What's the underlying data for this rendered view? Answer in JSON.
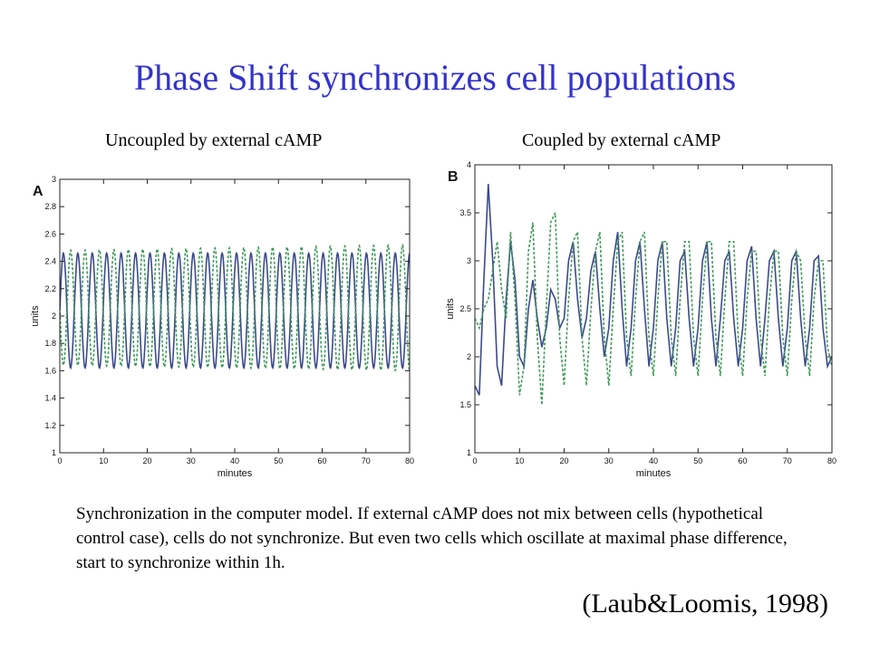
{
  "slide": {
    "title": "Phase Shift synchronizes cell populations",
    "caption": "Synchronization in the computer model. If external cAMP does not mix between cells (hypothetical control case), cells do not synchronize. But even two cells which oscillate at maximal phase difference, start to synchronize within 1h.",
    "citation": "(Laub&Loomis, 1998)"
  },
  "colors": {
    "title": "#3333cc",
    "series1": "#3b4a8c",
    "series2": "#3f9a5a"
  },
  "chart_data": [
    {
      "type": "line",
      "subtitle": "Uncoupled by external cAMP",
      "panel_label": "A",
      "xlabel": "minutes",
      "ylabel": "units",
      "xlim": [
        0,
        80
      ],
      "ylim": [
        1,
        3
      ],
      "xticks": [
        0,
        10,
        20,
        30,
        40,
        50,
        60,
        70,
        80
      ],
      "yticks": [
        1,
        1.2,
        1.4,
        1.6,
        1.8,
        2,
        2.2,
        2.4,
        2.6,
        2.8,
        3
      ],
      "grid": false,
      "series": [
        {
          "style": "solid",
          "period_min": 3.3,
          "phase": 0,
          "mean": 2.04,
          "amplitude": 0.42,
          "amplitude_end": 0.42
        },
        {
          "style": "dashed",
          "period_min": 3.3,
          "phase": 3.14159,
          "mean": 2.06,
          "amplitude": 0.42,
          "amplitude_end": 0.46
        }
      ]
    },
    {
      "type": "line",
      "subtitle": "Coupled by external cAMP",
      "panel_label": "B",
      "xlabel": "minutes",
      "ylabel": "units",
      "xlim": [
        0,
        80
      ],
      "ylim": [
        1,
        4
      ],
      "xticks": [
        0,
        10,
        20,
        30,
        40,
        50,
        60,
        70,
        80
      ],
      "yticks": [
        1,
        1.5,
        2,
        2.5,
        3,
        3.5,
        4
      ],
      "grid": false,
      "series": [
        {
          "style": "solid",
          "points": [
            [
              0,
              1.7
            ],
            [
              1,
              1.6
            ],
            [
              2,
              2.8
            ],
            [
              3,
              3.8
            ],
            [
              4,
              3.0
            ],
            [
              5,
              1.9
            ],
            [
              6,
              1.7
            ],
            [
              7,
              2.6
            ],
            [
              8,
              3.2
            ],
            [
              9,
              2.8
            ],
            [
              10,
              2.0
            ],
            [
              11,
              1.9
            ],
            [
              12,
              2.5
            ],
            [
              13,
              2.8
            ],
            [
              14,
              2.4
            ],
            [
              15,
              2.1
            ],
            [
              16,
              2.3
            ],
            [
              17,
              2.7
            ],
            [
              18,
              2.6
            ],
            [
              19,
              2.3
            ],
            [
              20,
              2.4
            ],
            [
              21,
              3.0
            ],
            [
              22,
              3.2
            ],
            [
              23,
              2.6
            ],
            [
              24,
              2.2
            ],
            [
              25,
              2.4
            ],
            [
              26,
              2.9
            ],
            [
              27,
              3.1
            ],
            [
              28,
              2.5
            ],
            [
              29,
              2.0
            ],
            [
              30,
              2.3
            ],
            [
              31,
              3.0
            ],
            [
              32,
              3.3
            ],
            [
              33,
              2.5
            ],
            [
              34,
              1.9
            ],
            [
              35,
              2.3
            ],
            [
              36,
              3.0
            ],
            [
              37,
              3.2
            ],
            [
              38,
              2.5
            ],
            [
              39,
              1.9
            ],
            [
              40,
              2.3
            ],
            [
              41,
              3.0
            ],
            [
              42,
              3.2
            ],
            [
              43,
              2.4
            ],
            [
              44,
              1.9
            ],
            [
              45,
              2.3
            ],
            [
              46,
              3.0
            ],
            [
              47,
              3.1
            ],
            [
              48,
              2.4
            ],
            [
              49,
              1.9
            ],
            [
              50,
              2.3
            ],
            [
              51,
              3.0
            ],
            [
              52,
              3.2
            ],
            [
              53,
              2.4
            ],
            [
              54,
              1.9
            ],
            [
              55,
              2.4
            ],
            [
              56,
              3.0
            ],
            [
              57,
              3.1
            ],
            [
              58,
              2.4
            ],
            [
              59,
              1.9
            ],
            [
              60,
              2.3
            ],
            [
              61,
              3.0
            ],
            [
              62,
              3.15
            ],
            [
              63,
              2.4
            ],
            [
              64,
              1.9
            ],
            [
              65,
              2.4
            ],
            [
              66,
              3.0
            ],
            [
              67,
              3.1
            ],
            [
              68,
              2.4
            ],
            [
              69,
              1.9
            ],
            [
              70,
              2.3
            ],
            [
              71,
              3.0
            ],
            [
              72,
              3.1
            ],
            [
              73,
              2.4
            ],
            [
              74,
              1.9
            ],
            [
              75,
              2.3
            ],
            [
              76,
              3.0
            ],
            [
              77,
              3.05
            ],
            [
              78,
              2.3
            ],
            [
              79,
              1.9
            ],
            [
              80,
              2.0
            ]
          ]
        },
        {
          "style": "dashed",
          "points": [
            [
              0,
              2.4
            ],
            [
              1,
              2.3
            ],
            [
              2,
              2.5
            ],
            [
              3,
              2.6
            ],
            [
              4,
              2.9
            ],
            [
              5,
              3.2
            ],
            [
              6,
              2.7
            ],
            [
              7,
              2.4
            ],
            [
              8,
              3.3
            ],
            [
              9,
              2.6
            ],
            [
              10,
              1.6
            ],
            [
              11,
              1.9
            ],
            [
              12,
              3.1
            ],
            [
              13,
              3.4
            ],
            [
              14,
              2.2
            ],
            [
              15,
              1.5
            ],
            [
              16,
              2.5
            ],
            [
              17,
              3.4
            ],
            [
              18,
              3.5
            ],
            [
              19,
              2.2
            ],
            [
              20,
              1.7
            ],
            [
              21,
              2.6
            ],
            [
              22,
              3.2
            ],
            [
              23,
              3.3
            ],
            [
              24,
              2.2
            ],
            [
              25,
              1.7
            ],
            [
              26,
              2.5
            ],
            [
              27,
              3.1
            ],
            [
              28,
              3.3
            ],
            [
              29,
              2.2
            ],
            [
              30,
              1.7
            ],
            [
              31,
              2.5
            ],
            [
              32,
              3.2
            ],
            [
              33,
              3.3
            ],
            [
              34,
              2.2
            ],
            [
              35,
              1.8
            ],
            [
              36,
              2.6
            ],
            [
              37,
              3.2
            ],
            [
              38,
              3.3
            ],
            [
              39,
              2.2
            ],
            [
              40,
              1.8
            ],
            [
              41,
              2.6
            ],
            [
              42,
              3.2
            ],
            [
              43,
              3.2
            ],
            [
              44,
              2.2
            ],
            [
              45,
              1.8
            ],
            [
              46,
              2.6
            ],
            [
              47,
              3.2
            ],
            [
              48,
              3.2
            ],
            [
              49,
              2.2
            ],
            [
              50,
              1.8
            ],
            [
              51,
              2.6
            ],
            [
              52,
              3.2
            ],
            [
              53,
              3.2
            ],
            [
              54,
              2.2
            ],
            [
              55,
              1.8
            ],
            [
              56,
              2.6
            ],
            [
              57,
              3.2
            ],
            [
              58,
              3.2
            ],
            [
              59,
              2.2
            ],
            [
              60,
              1.8
            ],
            [
              61,
              2.6
            ],
            [
              62,
              3.1
            ],
            [
              63,
              3.1
            ],
            [
              64,
              2.2
            ],
            [
              65,
              1.8
            ],
            [
              66,
              2.6
            ],
            [
              67,
              3.1
            ],
            [
              68,
              3.1
            ],
            [
              69,
              2.2
            ],
            [
              70,
              1.8
            ],
            [
              71,
              2.6
            ],
            [
              72,
              3.1
            ],
            [
              73,
              3.0
            ],
            [
              74,
              2.2
            ],
            [
              75,
              1.8
            ],
            [
              76,
              2.6
            ],
            [
              77,
              3.0
            ],
            [
              78,
              3.0
            ],
            [
              79,
              2.1
            ],
            [
              80,
              1.9
            ]
          ]
        }
      ]
    }
  ]
}
